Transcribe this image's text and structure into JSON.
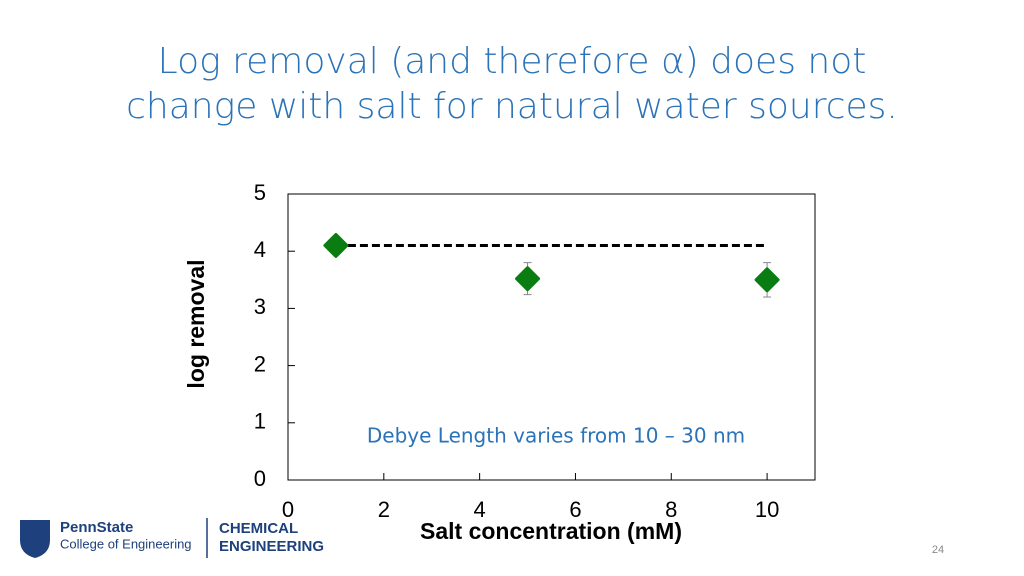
{
  "slide_title": [
    "Log removal (and therefore α) does not",
    "change with salt for natural water sources."
  ],
  "chart_data": {
    "type": "scatter",
    "x_label": "Salt concentration (mM)",
    "y_label": "log removal",
    "annotation": "Debye Length varies from 10 – 30 nm",
    "x": [
      1,
      5,
      10
    ],
    "values": [
      4.1,
      3.52,
      3.5
    ],
    "errors": [
      0.15,
      0.28,
      0.3
    ],
    "color": "#0a7d12",
    "reference_line": {
      "x": [
        1,
        10
      ],
      "y": 4.1
    },
    "xlim": [
      0,
      11
    ],
    "xticks": [
      0,
      2,
      4,
      6,
      8,
      10
    ],
    "ylim": [
      0,
      5
    ],
    "yticks": [
      0,
      1,
      2,
      3,
      4,
      5
    ]
  },
  "footer": {
    "school": "PennState",
    "college": "College of Engineering",
    "dept_line1": "CHEMICAL",
    "dept_line2": "ENGINEERING",
    "page": "24"
  }
}
